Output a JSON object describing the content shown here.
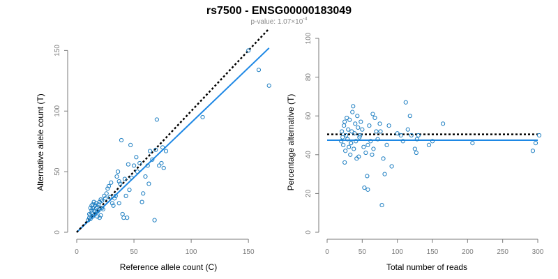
{
  "figure": {
    "title": "rs7500 - ENSG00000183049",
    "subtitle_prefix": "p-value: 1.07×10",
    "subtitle_exponent": "-4"
  },
  "colors": {
    "points": "#1f7fc2",
    "fit_line": "#1e88e5",
    "reference_line": "#000000",
    "axis": "#7a7a7a"
  },
  "chart_data": [
    {
      "type": "scatter",
      "title": "",
      "xlabel": "Reference allele count (C)",
      "ylabel": "Alternative allele count (T)",
      "xlim": [
        0,
        170
      ],
      "ylim": [
        0,
        160
      ],
      "xticks": [
        0,
        50,
        100,
        150
      ],
      "yticks": [
        0,
        50,
        100,
        150
      ],
      "grid": false,
      "points": [
        [
          10,
          10
        ],
        [
          11,
          12
        ],
        [
          12,
          14
        ],
        [
          12,
          11
        ],
        [
          13,
          16
        ],
        [
          14,
          13
        ],
        [
          15,
          18
        ],
        [
          16,
          15
        ],
        [
          17,
          20
        ],
        [
          18,
          13
        ],
        [
          12,
          20
        ],
        [
          13,
          22
        ],
        [
          14,
          23
        ],
        [
          15,
          25
        ],
        [
          16,
          22
        ],
        [
          18,
          21
        ],
        [
          19,
          23
        ],
        [
          20,
          25
        ],
        [
          21,
          27
        ],
        [
          22,
          26
        ],
        [
          11,
          15
        ],
        [
          13,
          18
        ],
        [
          14,
          20
        ],
        [
          16,
          17
        ],
        [
          17,
          24
        ],
        [
          19,
          18
        ],
        [
          20,
          12
        ],
        [
          22,
          20
        ],
        [
          23,
          19
        ],
        [
          24,
          30
        ],
        [
          25,
          28
        ],
        [
          26,
          32
        ],
        [
          27,
          36
        ],
        [
          28,
          38
        ],
        [
          30,
          41
        ],
        [
          31,
          24
        ],
        [
          32,
          22
        ],
        [
          33,
          28
        ],
        [
          34,
          30
        ],
        [
          35,
          46
        ],
        [
          36,
          50
        ],
        [
          37,
          42
        ],
        [
          38,
          40
        ],
        [
          39,
          76
        ],
        [
          40,
          15
        ],
        [
          41,
          12
        ],
        [
          42,
          44
        ],
        [
          43,
          30
        ],
        [
          44,
          12
        ],
        [
          45,
          56
        ],
        [
          46,
          35
        ],
        [
          47,
          72
        ],
        [
          48,
          45
        ],
        [
          50,
          55
        ],
        [
          52,
          62
        ],
        [
          53,
          50
        ],
        [
          55,
          57
        ],
        [
          57,
          25
        ],
        [
          58,
          32
        ],
        [
          60,
          46
        ],
        [
          62,
          55
        ],
        [
          63,
          40
        ],
        [
          64,
          67
        ],
        [
          66,
          60
        ],
        [
          68,
          10
        ],
        [
          69,
          68
        ],
        [
          70,
          93
        ],
        [
          72,
          55
        ],
        [
          74,
          57
        ],
        [
          75,
          70
        ],
        [
          76,
          53
        ],
        [
          78,
          67
        ],
        [
          110,
          95
        ],
        [
          150,
          150
        ],
        [
          159,
          134
        ],
        [
          168,
          121
        ],
        [
          37,
          24
        ],
        [
          29,
          29
        ],
        [
          18,
          17
        ],
        [
          21,
          14
        ]
      ],
      "series": [
        {
          "kind": "points",
          "values_ref": "points"
        },
        {
          "kind": "fit",
          "values": [
            [
              0,
              0
            ],
            [
              168,
              152
            ]
          ]
        },
        {
          "kind": "reference",
          "style": "dotted",
          "values": [
            [
              0,
              0
            ],
            [
              168,
              168
            ]
          ]
        }
      ]
    },
    {
      "type": "scatter",
      "title": "",
      "xlabel": "Total number of reads",
      "ylabel": "Percentage alternative (T)",
      "xlim": [
        0,
        300
      ],
      "ylim": [
        0,
        100
      ],
      "xticks": [
        0,
        50,
        100,
        150,
        200,
        250,
        300
      ],
      "yticks": [
        0,
        20,
        40,
        60,
        80,
        100
      ],
      "grid": false,
      "points": [
        [
          20,
          47
        ],
        [
          21,
          52
        ],
        [
          22,
          49
        ],
        [
          23,
          45
        ],
        [
          24,
          55
        ],
        [
          25,
          57
        ],
        [
          26,
          42
        ],
        [
          27,
          50
        ],
        [
          28,
          59
        ],
        [
          29,
          48
        ],
        [
          30,
          53
        ],
        [
          31,
          44
        ],
        [
          32,
          58
        ],
        [
          33,
          40
        ],
        [
          34,
          46
        ],
        [
          35,
          52
        ],
        [
          36,
          62
        ],
        [
          37,
          65
        ],
        [
          38,
          43
        ],
        [
          39,
          51
        ],
        [
          40,
          56
        ],
        [
          41,
          47
        ],
        [
          42,
          38
        ],
        [
          43,
          60
        ],
        [
          44,
          54
        ],
        [
          45,
          39
        ],
        [
          46,
          49
        ],
        [
          48,
          57
        ],
        [
          50,
          53
        ],
        [
          52,
          44
        ],
        [
          53,
          23
        ],
        [
          55,
          41
        ],
        [
          57,
          29
        ],
        [
          58,
          22
        ],
        [
          60,
          55
        ],
        [
          62,
          47
        ],
        [
          64,
          40
        ],
        [
          65,
          61
        ],
        [
          66,
          43
        ],
        [
          68,
          59
        ],
        [
          70,
          52
        ],
        [
          72,
          48
        ],
        [
          75,
          56
        ],
        [
          76,
          52
        ],
        [
          78,
          14
        ],
        [
          80,
          38
        ],
        [
          82,
          30
        ],
        [
          85,
          45
        ],
        [
          88,
          55
        ],
        [
          92,
          34
        ],
        [
          100,
          51
        ],
        [
          105,
          50
        ],
        [
          108,
          47
        ],
        [
          112,
          67
        ],
        [
          115,
          53
        ],
        [
          118,
          60
        ],
        [
          120,
          50
        ],
        [
          125,
          43
        ],
        [
          127,
          41
        ],
        [
          128,
          48
        ],
        [
          130,
          50
        ],
        [
          145,
          45
        ],
        [
          150,
          47
        ],
        [
          165,
          56
        ],
        [
          207,
          46
        ],
        [
          293,
          42
        ],
        [
          297,
          46
        ],
        [
          302,
          50
        ],
        [
          25,
          36
        ],
        [
          34,
          46
        ],
        [
          47,
          50
        ],
        [
          58,
          45
        ]
      ],
      "series": [
        {
          "kind": "points",
          "values_ref": "points"
        },
        {
          "kind": "fit",
          "values": [
            [
              0,
              47.5
            ],
            [
              300,
              47.5
            ]
          ]
        },
        {
          "kind": "reference",
          "style": "dotted",
          "values": [
            [
              0,
              50.5
            ],
            [
              300,
              50.5
            ]
          ]
        }
      ]
    }
  ]
}
